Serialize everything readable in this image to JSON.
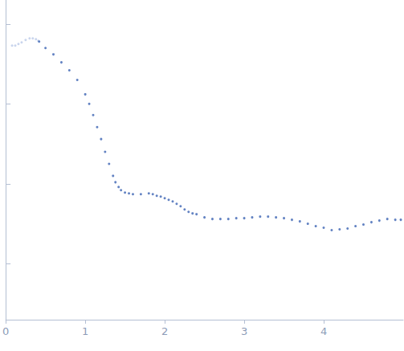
{
  "chart_data": {
    "type": "scatter",
    "xlim": [
      0,
      5
    ],
    "xticks": [
      0,
      1,
      2,
      3,
      4
    ],
    "ylim": [
      0.3,
      4.3
    ],
    "yticks": [
      1,
      2,
      3,
      4
    ],
    "tick_labels": "x",
    "grid": false,
    "marker": "circle",
    "series": [
      {
        "color": "#bccbe8",
        "x": [
          0.08,
          0.12,
          0.16,
          0.2,
          0.25,
          0.3,
          0.34,
          0.38,
          0.41
        ],
        "values": [
          3.73,
          3.73,
          3.75,
          3.77,
          3.8,
          3.82,
          3.82,
          3.81,
          3.79
        ]
      },
      {
        "color": "#3b63b3",
        "x": [
          0.42,
          0.5,
          0.6,
          0.7,
          0.8,
          0.9,
          1.0,
          1.05,
          1.1,
          1.15,
          1.2,
          1.25,
          1.3,
          1.35,
          1.38,
          1.42,
          1.45,
          1.5,
          1.55,
          1.6,
          1.7,
          1.8,
          1.85,
          1.9,
          1.95,
          2.0,
          2.05,
          2.1,
          2.15,
          2.2,
          2.25,
          2.3,
          2.35,
          2.4,
          2.5,
          2.6,
          2.7,
          2.8,
          2.9,
          3.0,
          3.1,
          3.2,
          3.3,
          3.4,
          3.5,
          3.6,
          3.7,
          3.8,
          3.9,
          4.0,
          4.1,
          4.2,
          4.3,
          4.4,
          4.5,
          4.6,
          4.7,
          4.8,
          4.9,
          4.97
        ],
        "values": [
          3.78,
          3.7,
          3.62,
          3.52,
          3.42,
          3.3,
          3.12,
          3.0,
          2.86,
          2.71,
          2.56,
          2.4,
          2.25,
          2.1,
          2.02,
          1.96,
          1.92,
          1.89,
          1.88,
          1.87,
          1.87,
          1.88,
          1.87,
          1.85,
          1.84,
          1.82,
          1.8,
          1.78,
          1.75,
          1.72,
          1.68,
          1.65,
          1.63,
          1.62,
          1.58,
          1.56,
          1.56,
          1.56,
          1.57,
          1.57,
          1.58,
          1.59,
          1.59,
          1.58,
          1.57,
          1.55,
          1.53,
          1.5,
          1.47,
          1.45,
          1.42,
          1.43,
          1.44,
          1.47,
          1.49,
          1.52,
          1.54,
          1.56,
          1.55,
          1.55
        ]
      }
    ]
  }
}
